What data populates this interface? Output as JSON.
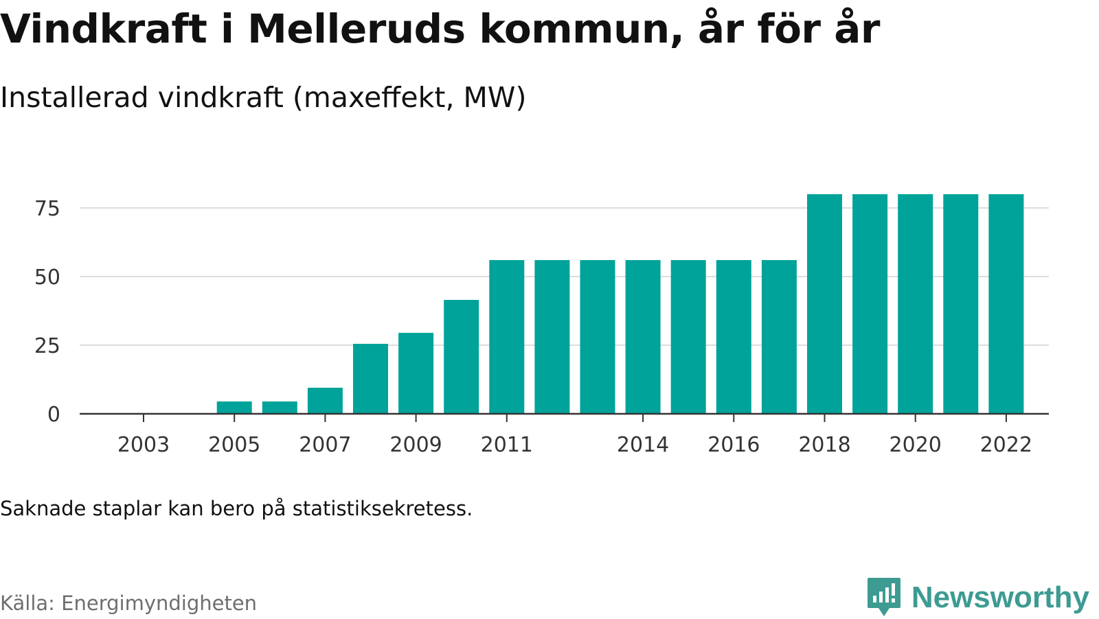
{
  "header": {
    "title": "Vindkraft i Melleruds kommun, år för år",
    "subtitle": "Installerad vindkraft (maxeffekt, MW)"
  },
  "footer": {
    "note": "Saknade staplar kan bero på statistiksekretess.",
    "source": "Källa: Energimyndigheten",
    "brand": "Newsworthy"
  },
  "colors": {
    "bar": "#00a39a",
    "grid": "#dddddd",
    "axis": "#333333",
    "brand": "#3d9b92"
  },
  "chart_data": {
    "type": "bar",
    "title": "Vindkraft i Melleruds kommun, år för år",
    "subtitle": "Installerad vindkraft (maxeffekt, MW)",
    "xlabel": "",
    "ylabel": "",
    "categories": [
      "2003",
      "2004",
      "2005",
      "2006",
      "2007",
      "2008",
      "2009",
      "2010",
      "2011",
      "2012",
      "2013",
      "2014",
      "2015",
      "2016",
      "2017",
      "2018",
      "2019",
      "2020",
      "2021",
      "2022"
    ],
    "values": [
      0,
      0,
      4.5,
      4.5,
      9.5,
      25.5,
      29.5,
      41.5,
      56,
      56,
      56,
      56,
      56,
      56,
      56,
      80,
      80,
      80,
      80,
      80
    ],
    "x_tick_labels": [
      "2003",
      "2005",
      "2007",
      "2009",
      "2011",
      "2014",
      "2016",
      "2018",
      "2020",
      "2022"
    ],
    "y_ticks": [
      0,
      25,
      50,
      75
    ],
    "ylim": [
      0,
      82
    ],
    "grid": true,
    "legend": "none"
  }
}
